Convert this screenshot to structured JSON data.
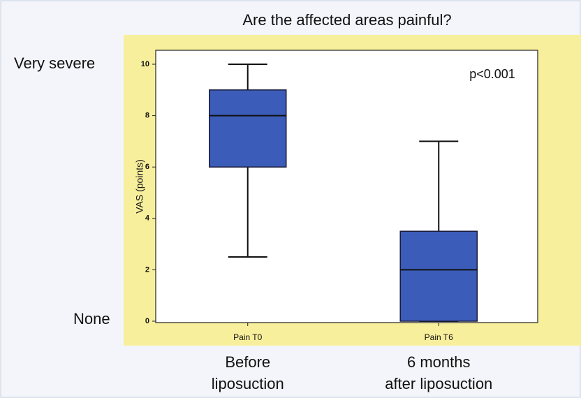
{
  "chart_data": {
    "type": "box",
    "title": "Are the affected areas painful?",
    "ylabel": "VAS (points)",
    "annotation": "p<0.001",
    "scale_labels": {
      "top": "Very severe",
      "bottom": "None"
    },
    "categories": [
      "Pain T0",
      "Pain T6"
    ],
    "descriptions": [
      [
        "Before",
        "liposuction"
      ],
      [
        "6 months",
        "after liposuction"
      ]
    ],
    "boxes": [
      {
        "min": 2.5,
        "q1": 6,
        "median": 8,
        "q3": 9,
        "max": 10
      },
      {
        "min": 0,
        "q1": 0,
        "median": 2,
        "q3": 3.5,
        "max": 7
      }
    ],
    "color": "#3b5cb8",
    "ylim": [
      0,
      10.5
    ],
    "yticks": [
      0,
      2,
      4,
      6,
      8,
      10
    ]
  }
}
